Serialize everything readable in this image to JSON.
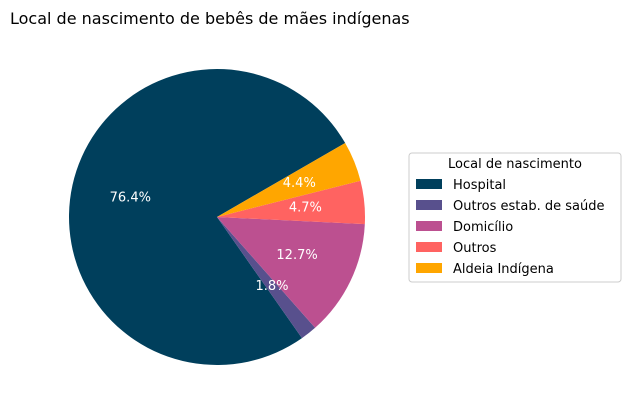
{
  "chart_data": {
    "type": "pie",
    "title": "Local de nascimento de bebês de mães indígenas",
    "legend_title": "Local de nascimento",
    "legend_position": "right",
    "start_angle_deg": 30,
    "slices": [
      {
        "label": "Hospital",
        "value": 76.4,
        "pct_label": "76.4%",
        "color": "#003f5c"
      },
      {
        "label": "Outros estab. de saúde",
        "value": 1.8,
        "pct_label": "1.8%",
        "color": "#58508d"
      },
      {
        "label": "Domicílio",
        "value": 12.7,
        "pct_label": "12.7%",
        "color": "#bc5090"
      },
      {
        "label": "Outros",
        "value": 4.7,
        "pct_label": "4.7%",
        "color": "#ff6361"
      },
      {
        "label": "Aldeia Indígena",
        "value": 4.4,
        "pct_label": "4.4%",
        "color": "#ffa600"
      }
    ]
  }
}
